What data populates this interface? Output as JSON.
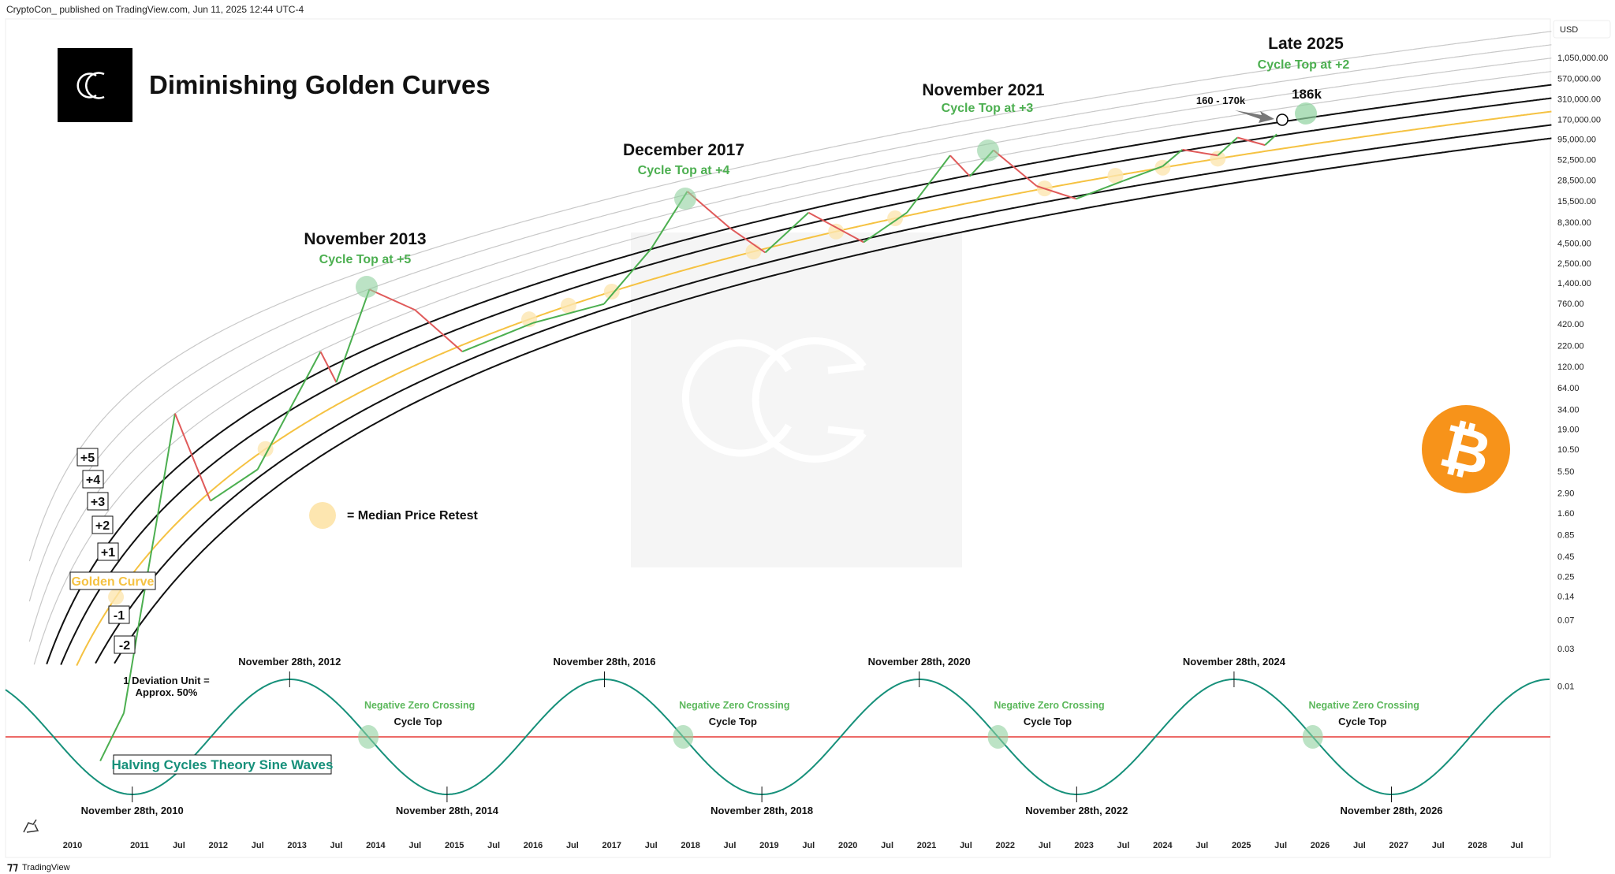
{
  "header": {
    "published": "CryptoCon_ published on TradingView.com, Jun 11, 2025 12:44 UTC-4"
  },
  "footer": {
    "brand": "TradingView"
  },
  "colors": {
    "golden": "#f5c242",
    "band_black": "#111111",
    "band_grey": "#c8c8c8",
    "up": "#4caf50",
    "down": "#e05a5a",
    "sine": "#16907a",
    "zero_line": "#e53935",
    "highlight": "#8fd19e",
    "median": "#fde6b0",
    "bitcoin": "#f7931a"
  },
  "chart_data": {
    "type": "line",
    "title": "Diminishing Golden Curves",
    "y_scale": "log",
    "currency": "USD",
    "y_ticks": [
      "1,050,000.00",
      "570,000.00",
      "310,000.00",
      "170,000.00",
      "95,000.00",
      "52,500.00",
      "28,500.00",
      "15,500.00",
      "8,300.00",
      "4,500.00",
      "2,500.00",
      "1,400.00",
      "760.00",
      "420.00",
      "220.00",
      "120.00",
      "64.00",
      "34.00",
      "19.00",
      "10.50",
      "5.50",
      "2.90",
      "1.60",
      "0.85",
      "0.45",
      "0.25",
      "0.14",
      "0.07",
      "0.03",
      "0.01"
    ],
    "x_ticks": [
      "2010",
      "2011",
      "Jul",
      "2012",
      "Jul",
      "2013",
      "Jul",
      "2014",
      "Jul",
      "2015",
      "Jul",
      "2016",
      "Jul",
      "2017",
      "Jul",
      "2018",
      "Jul",
      "2019",
      "Jul",
      "2020",
      "Jul",
      "2021",
      "Jul",
      "2022",
      "Jul",
      "2023",
      "Jul",
      "2024",
      "Jul",
      "2025",
      "Jul",
      "2026",
      "Jul",
      "2027",
      "Jul",
      "2028",
      "Jul"
    ],
    "price": {
      "x": [
        2010.5,
        2010.8,
        2011.0,
        2011.2,
        2011.45,
        2011.9,
        2012.5,
        2013.3,
        2013.5,
        2013.92,
        2014.5,
        2015.1,
        2016.0,
        2016.9,
        2017.5,
        2017.96,
        2018.5,
        2018.95,
        2019.5,
        2020.2,
        2020.75,
        2021.3,
        2021.55,
        2021.85,
        2022.4,
        2022.9,
        2023.5,
        2024.0,
        2024.25,
        2024.7,
        2024.95,
        2025.3,
        2025.45
      ],
      "y": [
        0.0011,
        0.0045,
        0.07,
        1,
        30,
        2.3,
        5.8,
        185,
        75,
        1150,
        630,
        185,
        430,
        750,
        3800,
        20500,
        7000,
        3400,
        11000,
        4600,
        11000,
        59000,
        32000,
        69000,
        24000,
        16500,
        28000,
        43000,
        70000,
        59000,
        100000,
        80000,
        110000
      ]
    },
    "bands": [
      {
        "label": "+5",
        "offset": 5,
        "style": "grey"
      },
      {
        "label": "+4",
        "offset": 4,
        "style": "grey"
      },
      {
        "label": "+3",
        "offset": 3,
        "style": "grey"
      },
      {
        "label": "+2",
        "offset": 2,
        "style": "black"
      },
      {
        "label": "+1",
        "offset": 1,
        "style": "black"
      },
      {
        "label": "Golden Curve",
        "offset": 0,
        "style": "golden"
      },
      {
        "label": "-1",
        "offset": -1,
        "style": "black"
      },
      {
        "label": "-2",
        "offset": -2,
        "style": "black"
      }
    ],
    "extra_grey_band_offset": 6,
    "median_retests": [
      2010.7,
      2012.6,
      2015.95,
      2016.45,
      2017.0,
      2018.8,
      2019.85,
      2020.6,
      2022.5,
      2023.4,
      2024.0,
      2024.7
    ],
    "cycle_tops": [
      {
        "title": "November 2013",
        "subtitle": "Cycle Top at +5",
        "x": 2013.92,
        "y": 1150
      },
      {
        "title": "December 2017",
        "subtitle": "Cycle Top at +4",
        "x": 2017.96,
        "y": 20500
      },
      {
        "title": "November 2021",
        "subtitle": "Cycle Top at +3",
        "x": 2021.85,
        "y": 69000
      },
      {
        "title": "Late 2025",
        "subtitle": "Cycle Top at +2",
        "x": 2025.9,
        "y": 186000
      }
    ],
    "projection": {
      "target_label": "186k",
      "range_label": "160 - 170k"
    },
    "legend_median": "= Median Price Retest",
    "deviation_note": [
      "1 Deviation Unit =",
      "Approx. 50%"
    ],
    "sine": {
      "title": "Halving Cycles Theory Sine Waves",
      "period_years": 4,
      "peaks": [
        "November 28th, 2012",
        "November 28th, 2016",
        "November 28th, 2020",
        "November 28th, 2024"
      ],
      "troughs": [
        "November 28th, 2010",
        "November 28th, 2014",
        "November 28th, 2018",
        "November 28th, 2022",
        "November 28th, 2026"
      ],
      "zero_cross_label": "Negative Zero Crossing",
      "cycle_top_label": "Cycle Top"
    }
  }
}
